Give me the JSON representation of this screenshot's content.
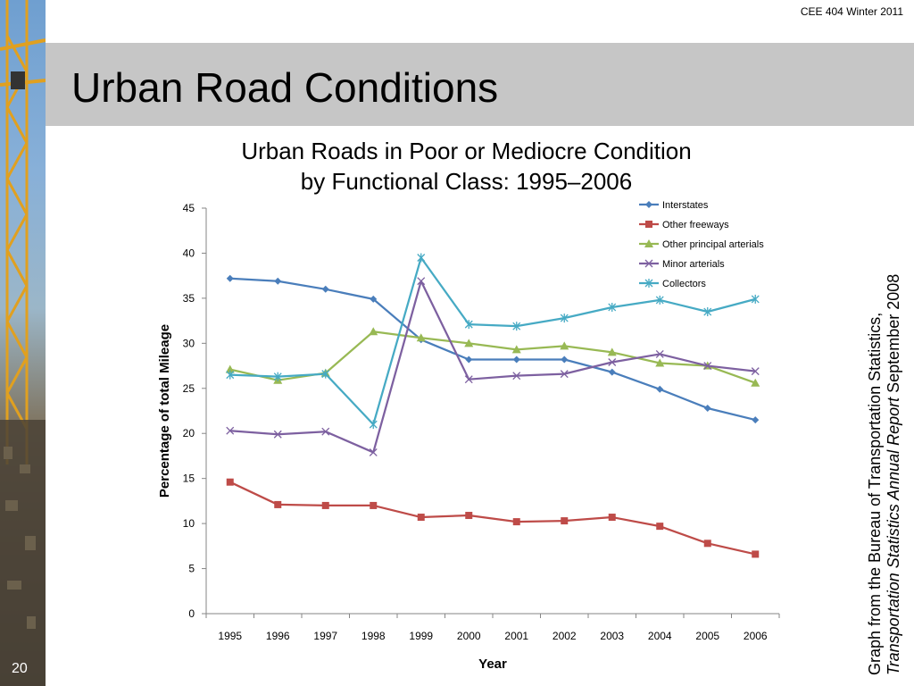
{
  "header": {
    "course": "CEE 404 Winter 2011"
  },
  "slide": {
    "title": "Urban Road Conditions",
    "number": "20"
  },
  "source_note": {
    "line1": "Graph from the Bureau of Transportation Statistics,",
    "line2_italic": "Transportation Statistics Annual Report",
    "line2_rest": " September 2008"
  },
  "chart_data": {
    "type": "line",
    "title": "Urban Roads in Poor or Mediocre Condition",
    "subtitle": "by Functional Class: 1995–2006",
    "xlabel": "Year",
    "ylabel": "Percentage of total Mileage",
    "categories": [
      "1995",
      "1996",
      "1997",
      "1998",
      "1999",
      "2000",
      "2001",
      "2002",
      "2003",
      "2004",
      "2005",
      "2006"
    ],
    "ylim": [
      0,
      45
    ],
    "yticks": [
      "0",
      "5",
      "10",
      "15",
      "20",
      "25",
      "30",
      "35",
      "40",
      "45"
    ],
    "grid": false,
    "legend_position": "top-right",
    "series": [
      {
        "name": "Interstates",
        "color": "#4a7ebb",
        "marker": "diamond",
        "values": [
          37.2,
          36.9,
          36.0,
          34.9,
          30.4,
          28.2,
          28.2,
          28.2,
          26.8,
          24.9,
          22.8,
          21.5
        ]
      },
      {
        "name": "Other freeways",
        "color": "#be4b48",
        "marker": "square",
        "values": [
          14.6,
          12.1,
          12.0,
          12.0,
          10.7,
          10.9,
          10.2,
          10.3,
          10.7,
          9.7,
          7.8,
          6.6
        ]
      },
      {
        "name": "Other principal arterials",
        "color": "#98b954",
        "marker": "triangle",
        "values": [
          27.1,
          25.9,
          26.7,
          31.3,
          30.6,
          30.0,
          29.3,
          29.7,
          29.0,
          27.8,
          27.5,
          25.6
        ]
      },
      {
        "name": "Minor arterials",
        "color": "#7d60a0",
        "marker": "x",
        "values": [
          20.3,
          19.9,
          20.2,
          17.9,
          36.9,
          26.0,
          26.4,
          26.6,
          27.9,
          28.8,
          27.5,
          26.9
        ]
      },
      {
        "name": "Collectors",
        "color": "#46aac4",
        "marker": "star",
        "values": [
          26.5,
          26.3,
          26.6,
          21.0,
          39.5,
          32.1,
          31.9,
          32.8,
          34.0,
          34.8,
          33.5,
          34.9
        ]
      }
    ]
  }
}
